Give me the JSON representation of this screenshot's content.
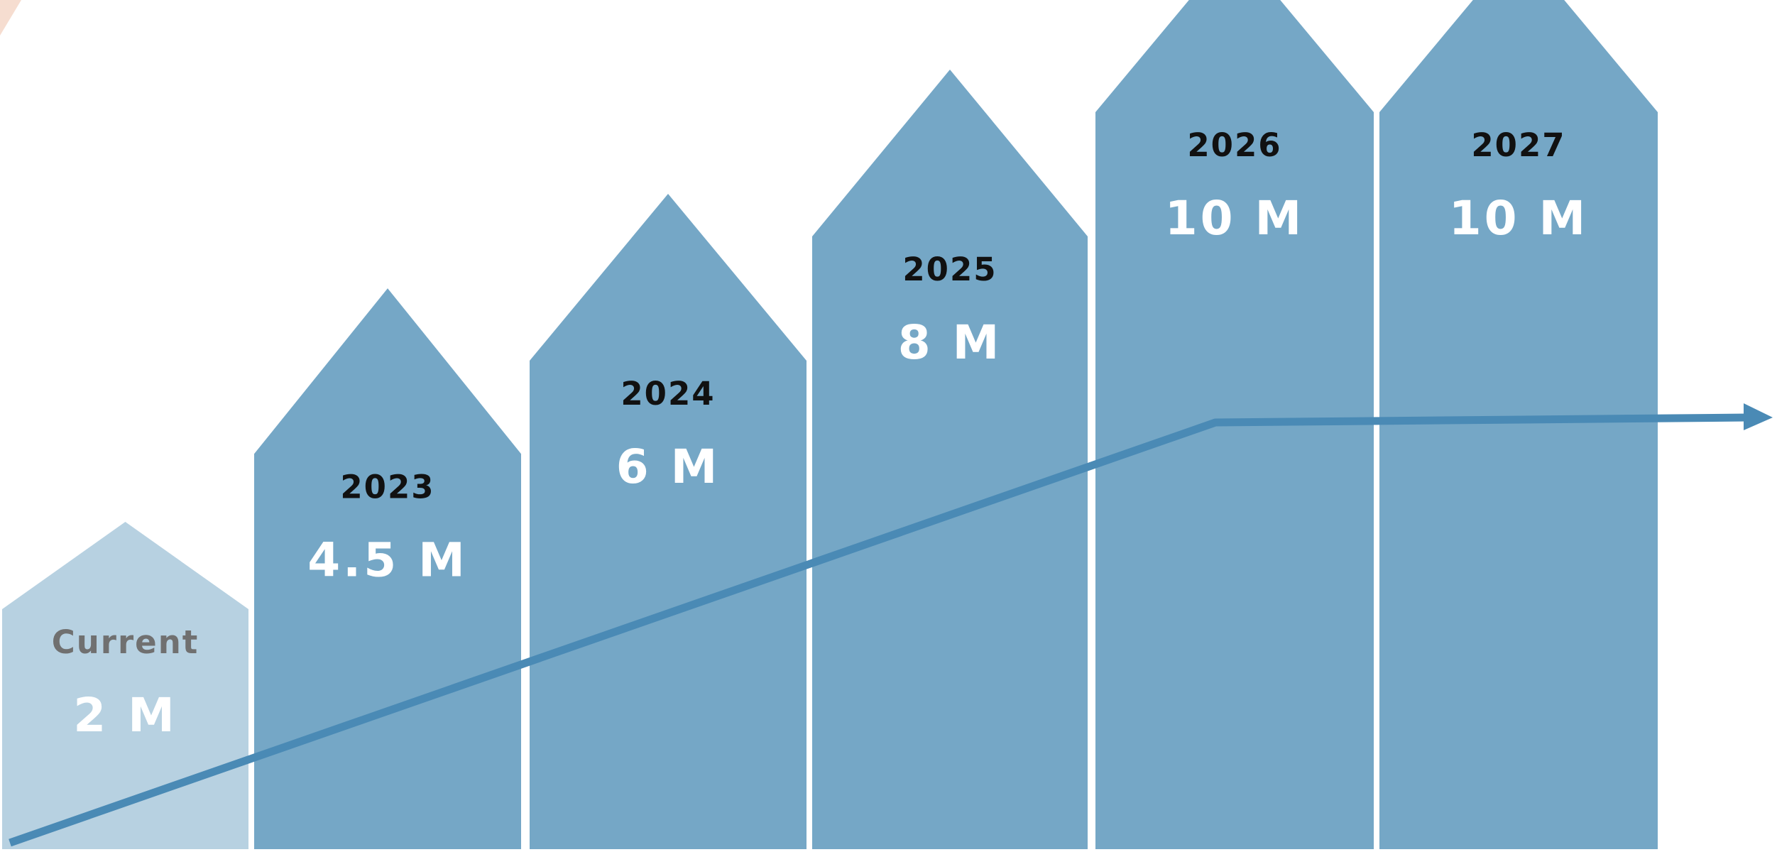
{
  "chart_data": {
    "type": "bar",
    "title": "",
    "xlabel": "",
    "ylabel": "",
    "categories": [
      "Current",
      "2023",
      "2024",
      "2025",
      "2026",
      "2027"
    ],
    "values": [
      2,
      4.5,
      6,
      8,
      10,
      10
    ],
    "value_labels": [
      "2 M",
      "4.5 M",
      "6 M",
      "8 M",
      "10 M",
      "10 M"
    ],
    "unit": "M",
    "trend_line": true,
    "grid": false,
    "legend": "none"
  },
  "colors": {
    "current_bar": "#b7d1e1",
    "bar": "#75a7c6",
    "trend_line": "#4a8ab5",
    "current_label": "#707070",
    "year_label": "#111111",
    "value_label": "#ffffff",
    "corner_accent": "#f6ddd0"
  }
}
